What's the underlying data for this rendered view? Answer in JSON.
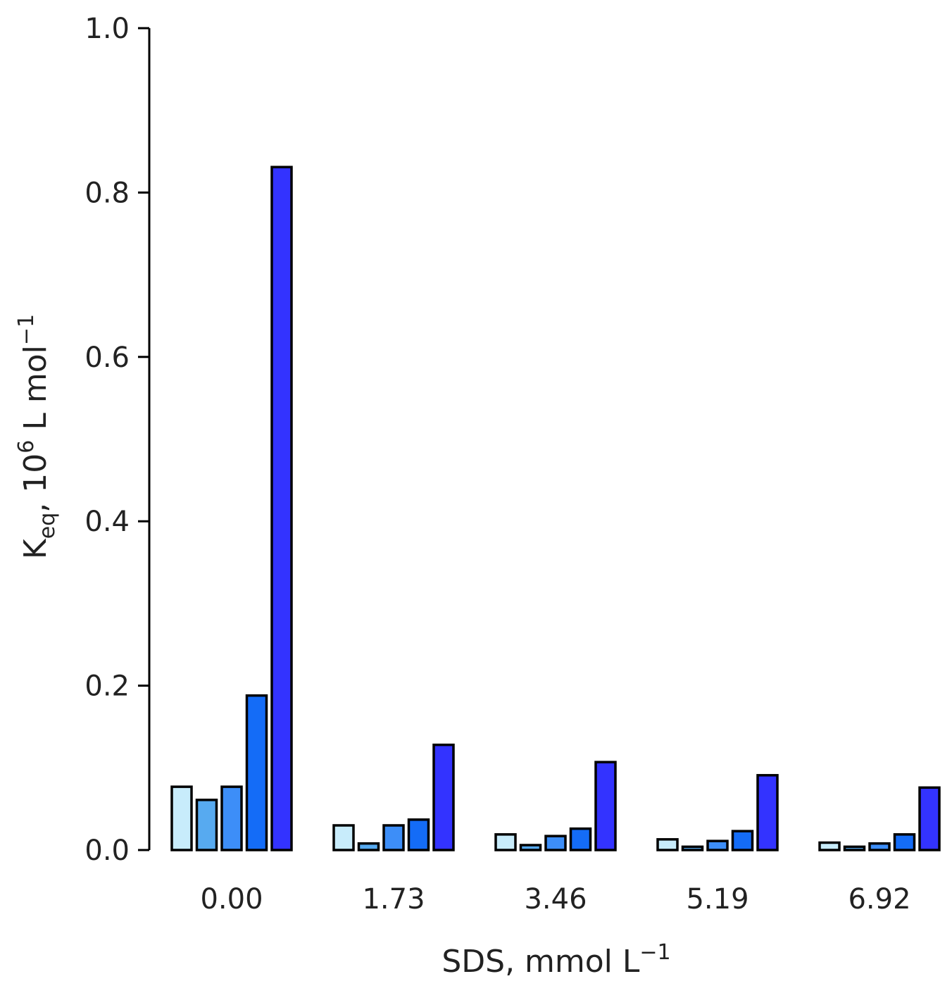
{
  "chart_data": {
    "type": "bar",
    "title": "",
    "xlabel": {
      "base": "SDS, mmol L",
      "sup": "−1"
    },
    "ylabel": {
      "k": "K",
      "k_sub": "eq",
      "mid": ", 10",
      "mid_sup": "6",
      "unit": " L mol",
      "unit_sup": "−1"
    },
    "categories": [
      "0.00",
      "1.73",
      "3.46",
      "5.19",
      "6.92"
    ],
    "ylim": [
      0.0,
      1.0
    ],
    "yticks": [
      "0.0",
      "0.2",
      "0.4",
      "0.6",
      "0.8",
      "1.0"
    ],
    "ytick_values": [
      0.0,
      0.2,
      0.4,
      0.6,
      0.8,
      1.0
    ],
    "grid": false,
    "legend": "none",
    "series": [
      {
        "name": "series-1",
        "color": "#c8ecfb",
        "values": [
          0.077,
          0.03,
          0.019,
          0.013,
          0.009
        ]
      },
      {
        "name": "series-2",
        "color": "#57aaf0",
        "values": [
          0.061,
          0.008,
          0.006,
          0.004,
          0.004
        ]
      },
      {
        "name": "series-3",
        "color": "#3d8ef8",
        "values": [
          0.077,
          0.03,
          0.017,
          0.011,
          0.008
        ]
      },
      {
        "name": "series-4",
        "color": "#146cf7",
        "values": [
          0.188,
          0.037,
          0.026,
          0.023,
          0.019
        ]
      },
      {
        "name": "series-5",
        "color": "#3333ff",
        "values": [
          0.831,
          0.128,
          0.107,
          0.091,
          0.076
        ]
      }
    ]
  }
}
